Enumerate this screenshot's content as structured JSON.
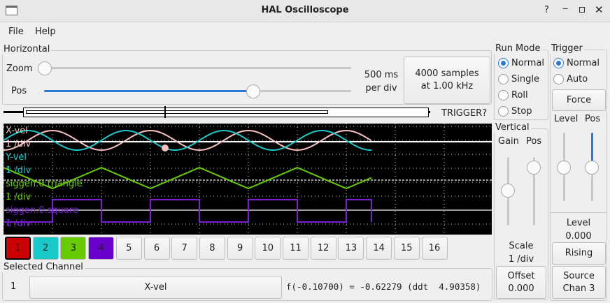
{
  "window": {
    "title": "HAL Oscilloscope"
  },
  "menu": [
    "File",
    "Help"
  ],
  "horizontal": {
    "label": "Horizontal",
    "zoom_label": "Zoom",
    "pos_label": "Pos",
    "zoom_value": 0,
    "pos_value": 0.6,
    "per_div": "500 ms",
    "per_div_unit": "per div",
    "samples": "4000 samples",
    "rate": "at 1.00 kHz",
    "trigger_status": "TRIGGER?"
  },
  "run_mode": {
    "label": "Run Mode",
    "options": [
      "Normal",
      "Single",
      "Roll",
      "Stop"
    ],
    "selected": "Normal"
  },
  "trigger": {
    "label": "Trigger",
    "options": [
      "Normal",
      "Auto"
    ],
    "selected": "Normal",
    "force": "Force",
    "level_label": "Level",
    "pos_label": "Pos",
    "level_caption": "Level",
    "level_value": "0.000",
    "edge": "Rising",
    "source_label": "Source",
    "source_value": "Chan 3"
  },
  "vertical": {
    "label": "Vertical",
    "gain_label": "Gain",
    "pos_label": "Pos",
    "scale_label": "Scale",
    "scale_value": "1 /div",
    "offset_label": "Offset",
    "offset_value": "0.000"
  },
  "traces": [
    {
      "name": "X-vel",
      "scale": "1 /div",
      "color": "#f8c0c0"
    },
    {
      "name": "Y-vel",
      "scale": "1 /div",
      "color": "#19c8c8"
    },
    {
      "name": "siggen.0.triangle",
      "scale": "1 /div",
      "color": "#66cc00"
    },
    {
      "name": "siggen.0.square",
      "scale": "1 /div",
      "color": "#7a1fd6"
    }
  ],
  "channels": [
    {
      "n": "1",
      "color": "#cc0000"
    },
    {
      "n": "2",
      "color": "#19c8c8"
    },
    {
      "n": "3",
      "color": "#66cc00"
    },
    {
      "n": "4",
      "color": "#6a00cc"
    },
    {
      "n": "5"
    },
    {
      "n": "6"
    },
    {
      "n": "7"
    },
    {
      "n": "8"
    },
    {
      "n": "9"
    },
    {
      "n": "10"
    },
    {
      "n": "11"
    },
    {
      "n": "12"
    },
    {
      "n": "13"
    },
    {
      "n": "14"
    },
    {
      "n": "15"
    },
    {
      "n": "16"
    }
  ],
  "selected_channel": {
    "label": "Selected Channel",
    "number": "1",
    "name": "X-vel",
    "readout": "f(-0.10700) = -0.62279 (ddt  4.90358)"
  }
}
